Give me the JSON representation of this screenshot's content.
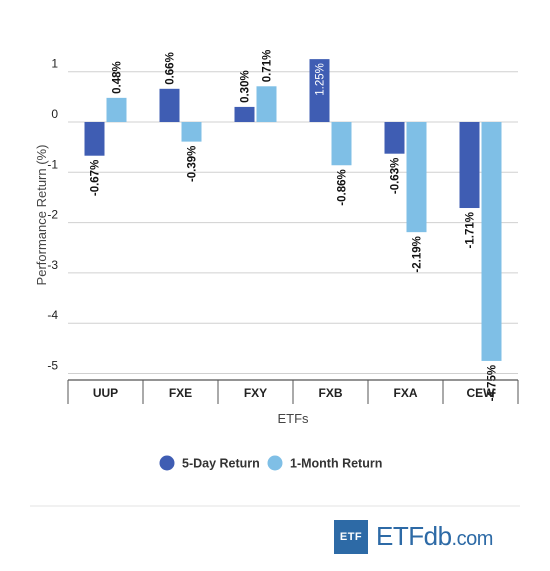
{
  "chart_data": {
    "type": "bar",
    "categories": [
      "UUP",
      "FXE",
      "FXY",
      "FXB",
      "FXA",
      "CEW"
    ],
    "series": [
      {
        "name": "5-Day Return",
        "values": [
          -0.67,
          0.66,
          0.3,
          1.25,
          -0.63,
          -1.71
        ],
        "labels": [
          "-0.67%",
          "0.66%",
          "0.30%",
          "1.25%",
          "-0.63%",
          "-1.71%"
        ],
        "color": "#3f5db3"
      },
      {
        "name": "1-Month Return",
        "values": [
          0.48,
          -0.39,
          0.71,
          -0.86,
          -2.19,
          -4.75
        ],
        "labels": [
          "0.48%",
          "-0.39%",
          "0.71%",
          "-0.86%",
          "-2.19%",
          "-4.75%"
        ],
        "color": "#7fbfe6"
      }
    ],
    "xlabel": "ETFs",
    "ylabel": "Performance Return (%)",
    "ylim": [
      -5,
      1
    ],
    "yticks": [
      1,
      0,
      -1,
      -2,
      -3,
      -4,
      -5
    ],
    "ytick_labels": [
      "1",
      "0",
      "-1",
      "-2",
      "-3",
      "-4",
      "-5"
    ],
    "grid": true,
    "legend_position": "bottom"
  },
  "branding": {
    "logo_box_text": "ETF",
    "logo_main": "ETF",
    "logo_light": "db",
    "logo_suffix": ".com"
  }
}
